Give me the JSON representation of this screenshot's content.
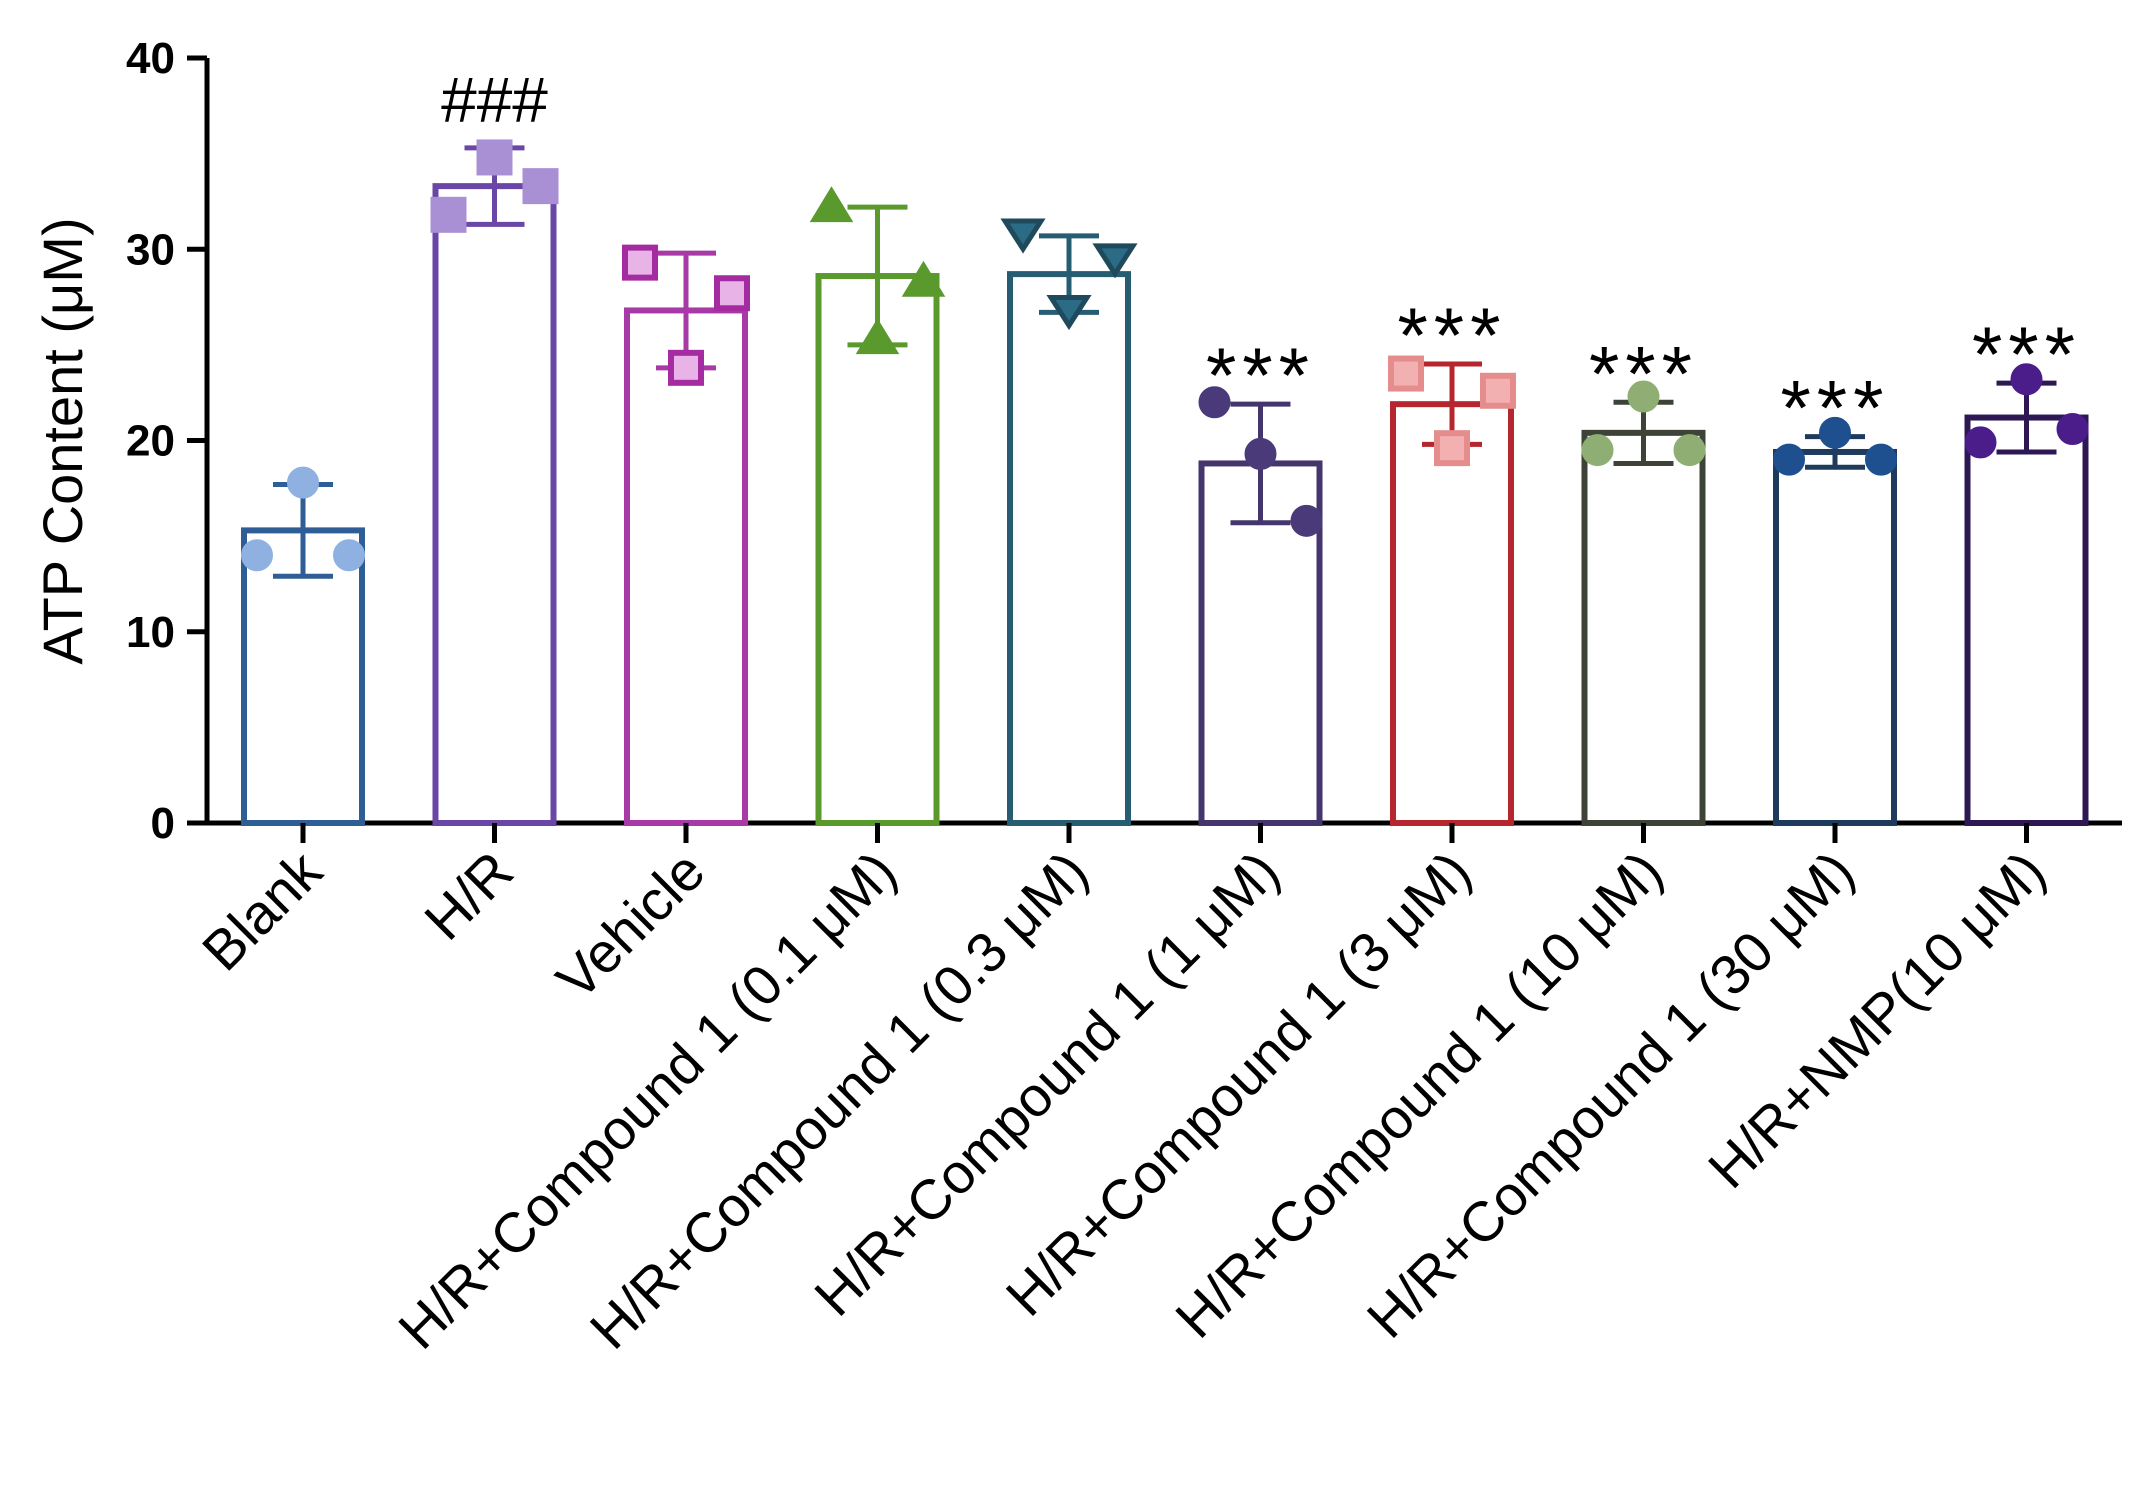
{
  "chart_data": {
    "type": "bar",
    "title": "",
    "xlabel": "",
    "ylabel": "ATP Content (μM)",
    "ylim": [
      0,
      40
    ],
    "yticks": [
      0,
      10,
      20,
      30,
      40
    ],
    "categories": [
      "Blank",
      "H/R",
      "Vehicle",
      "H/R+Compound 1 (0.1 μM)",
      "H/R+Compound 1 (0.3 μM)",
      "H/R+Compound 1 (1 μM)",
      "H/R+Compound 1 (3 μM)",
      "H/R+Compound 1 (10 μM)",
      "H/R+Compound 1 (30 μM)",
      "H/R+NMP(10 μM)"
    ],
    "values": [
      15.3,
      33.3,
      26.8,
      28.6,
      28.7,
      18.8,
      21.9,
      20.4,
      19.4,
      21.2
    ],
    "errors": [
      2.4,
      2.0,
      3.0,
      3.6,
      2.0,
      3.1,
      2.1,
      1.6,
      0.8,
      1.8
    ],
    "points": [
      [
        14.0,
        17.8,
        14.0
      ],
      [
        31.8,
        34.8,
        33.3
      ],
      [
        29.3,
        23.8,
        27.7
      ],
      [
        32.2,
        25.3,
        28.3
      ],
      [
        30.8,
        26.8,
        29.5
      ],
      [
        22.0,
        19.3,
        15.8
      ],
      [
        23.5,
        19.6,
        22.6
      ],
      [
        19.5,
        22.3,
        19.5
      ],
      [
        19.0,
        20.4,
        19.0
      ],
      [
        19.9,
        23.2,
        20.6
      ]
    ],
    "markers": [
      "circle",
      "square",
      "square",
      "triangle-up",
      "triangle-down",
      "circle",
      "square",
      "circle",
      "circle",
      "circle"
    ],
    "bar_colors": [
      "#2f5e97",
      "#6a46a6",
      "#a83aa8",
      "#5a9a2d",
      "#275d73",
      "#44366d",
      "#b5262f",
      "#3d4437",
      "#1e3b5e",
      "#2e1853"
    ],
    "marker_colors": [
      "#8fb1e1",
      "#a98fd3",
      "#a52ba0",
      "#5a9a2d",
      "#2b6b86",
      "#4a3a7a",
      "#e58d8d",
      "#8fae74",
      "#1e4f8f",
      "#4a1d8a"
    ],
    "marker_inner_colors": [
      "",
      "",
      "#e8b4e8",
      "",
      "",
      "",
      "#f3b0b0",
      "",
      "",
      ""
    ],
    "significance": [
      "",
      "###",
      "",
      "",
      "",
      "***",
      "***",
      "***",
      "***",
      "***"
    ]
  }
}
